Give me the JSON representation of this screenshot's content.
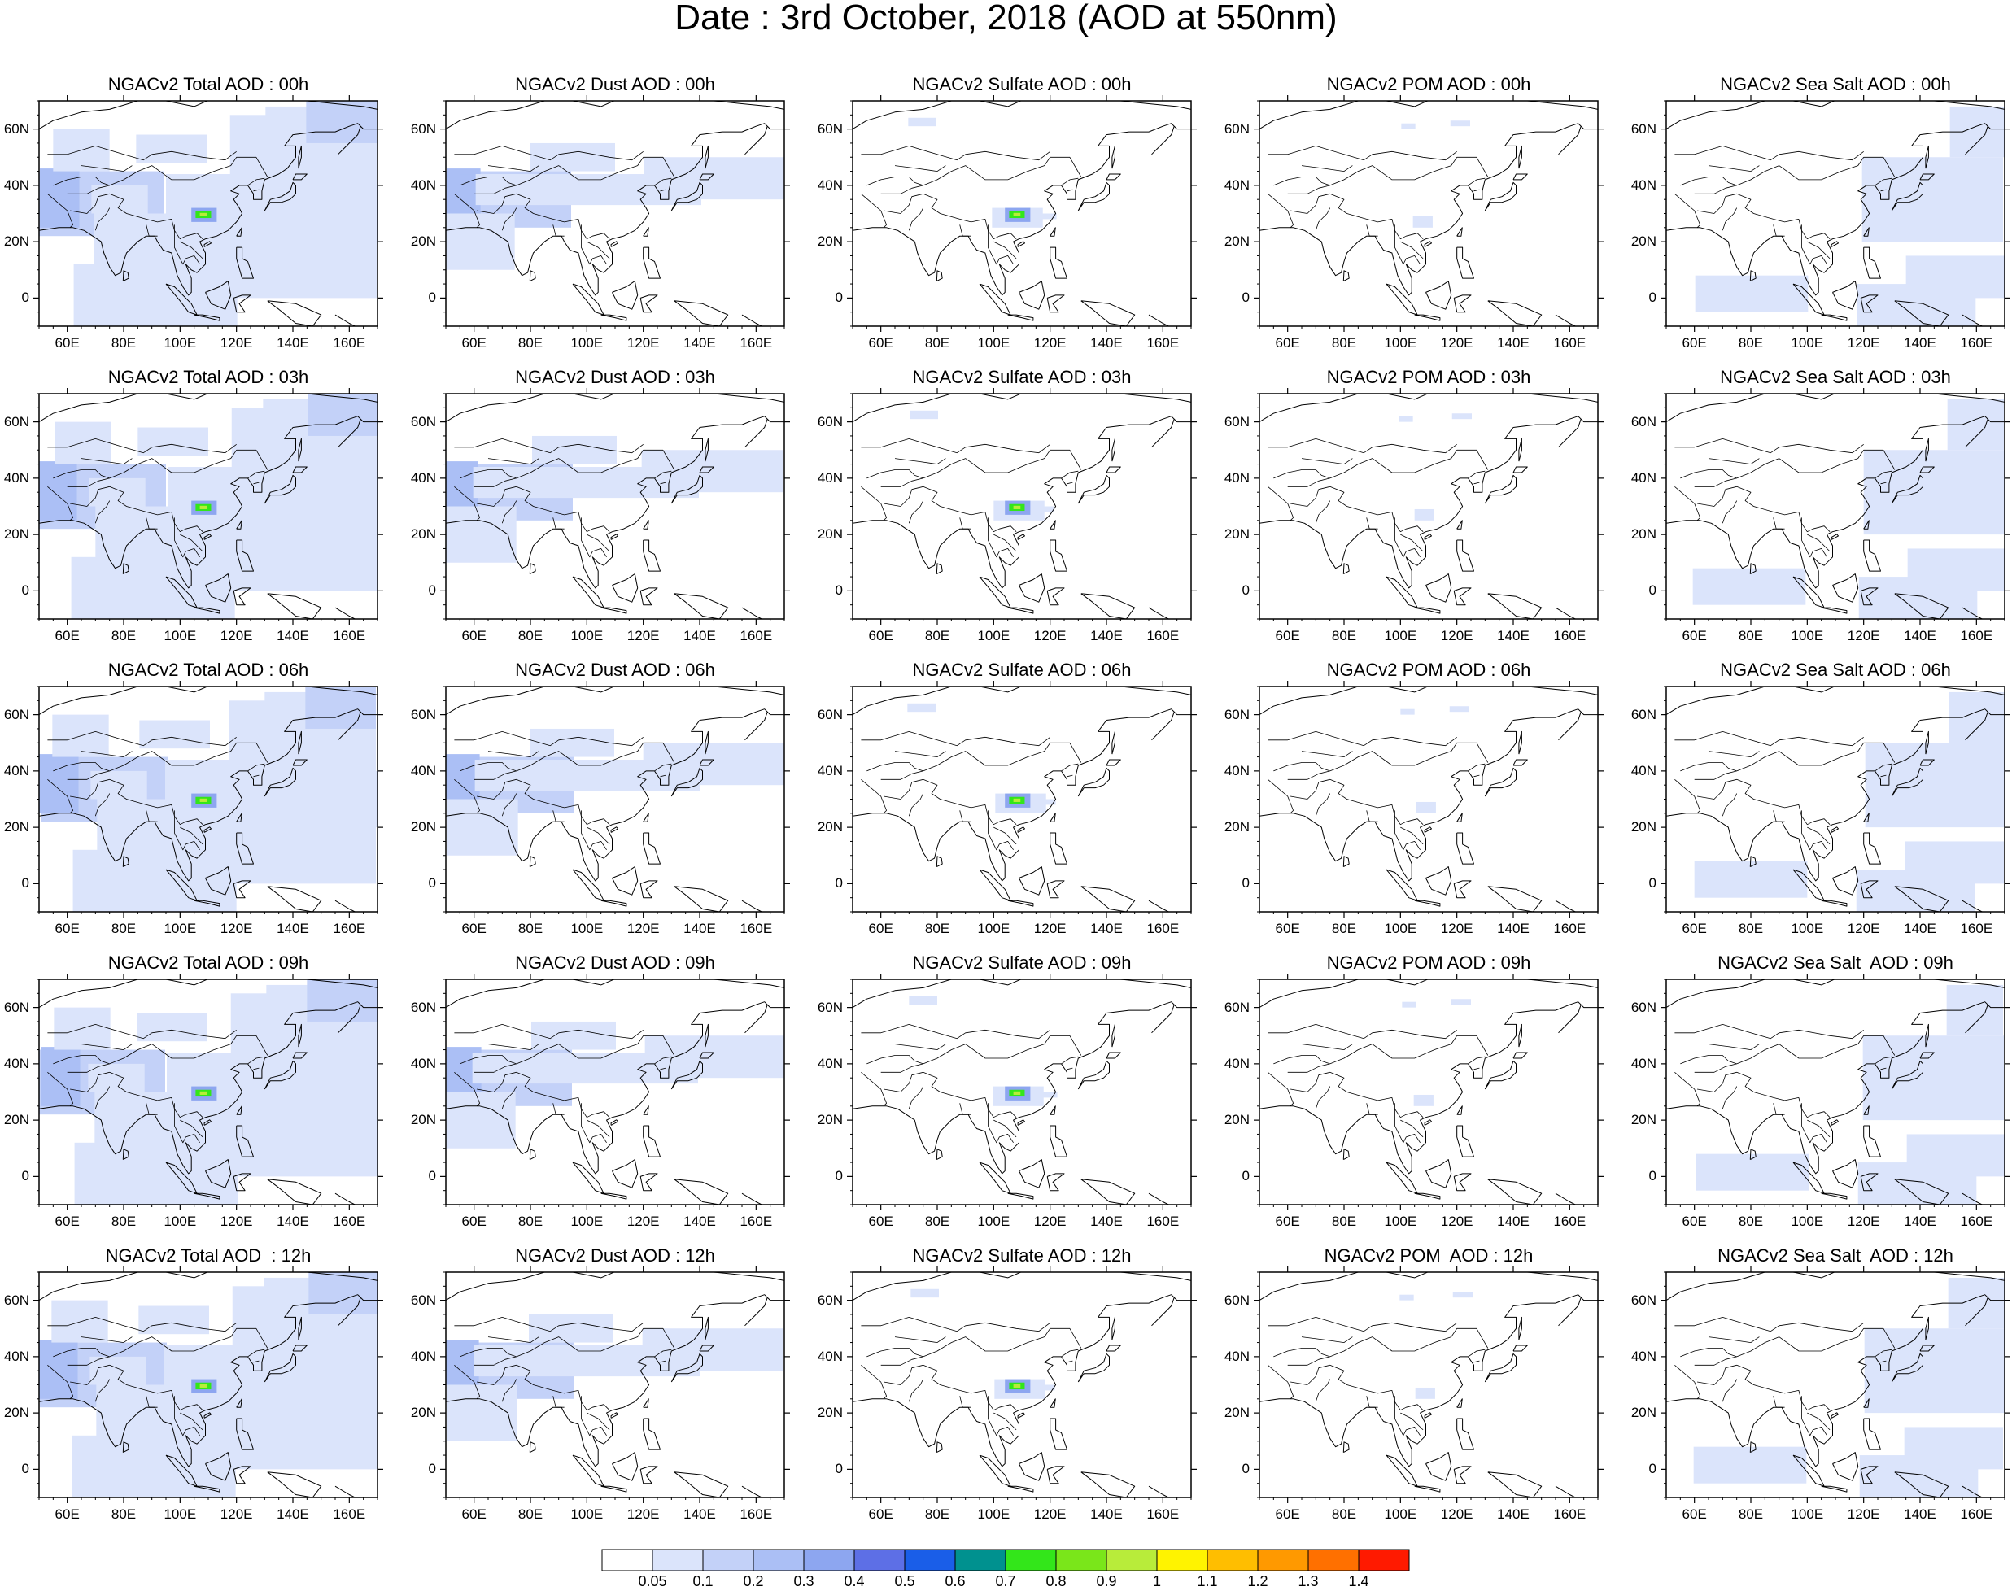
{
  "figure_title": "Date : 3rd October, 2018 (AOD at 550nm)",
  "panel_titles": [
    [
      "NGACv2 Total AOD : 00h",
      "NGACv2 Dust AOD : 00h",
      "NGACv2 Sulfate AOD : 00h",
      "NGACv2 POM AOD : 00h",
      "NGACv2 Sea Salt AOD : 00h"
    ],
    [
      "NGACv2 Total AOD : 03h",
      "NGACv2 Dust AOD : 03h",
      "NGACv2 Sulfate AOD : 03h",
      "NGACv2 POM AOD : 03h",
      "NGACv2 Sea Salt AOD : 03h"
    ],
    [
      "NGACv2 Total AOD : 06h",
      "NGACv2 Dust AOD : 06h",
      "NGACv2 Sulfate AOD : 06h",
      "NGACv2 POM AOD : 06h",
      "NGACv2 Sea Salt AOD : 06h"
    ],
    [
      "NGACv2 Total AOD : 09h",
      "NGACv2 Dust AOD : 09h",
      "NGACv2 Sulfate AOD : 09h",
      "NGACv2 POM AOD : 09h",
      "NGACv2 Sea Salt  AOD : 09h"
    ],
    [
      "NGACv2 Total AOD  : 12h",
      "NGACv2 Dust AOD : 12h",
      "NGACv2 Sulfate AOD : 12h",
      "NGACv2 POM  AOD : 12h",
      "NGACv2 Sea Salt  AOD : 12h"
    ]
  ],
  "map_extent": {
    "lon_range": [
      50,
      170
    ],
    "lat_range": [
      -10,
      70
    ]
  },
  "x_tick_labels": [
    "60E",
    "80E",
    "100E",
    "120E",
    "140E",
    "160E"
  ],
  "y_tick_labels": [
    "60N",
    "40N",
    "20N",
    "0"
  ],
  "colorbar": {
    "labels": [
      "0.05",
      "0.1",
      "0.2",
      "0.3",
      "0.4",
      "0.5",
      "0.6",
      "0.7",
      "0.8",
      "0.9",
      "1",
      "1.1",
      "1.2",
      "1.3",
      "1.4"
    ],
    "colors": [
      "#ffffff",
      "#dbe4fb",
      "#c3d1f8",
      "#abbff5",
      "#8da6f0",
      "#5d6fe6",
      "#1a5ee8",
      "#00918f",
      "#33e61a",
      "#7ae61a",
      "#b8ec3a",
      "#fff300",
      "#ffbe00",
      "#ff9900",
      "#ff7000",
      "#ff1a00"
    ]
  },
  "color_scale": {
    "light": "#dbe4fb",
    "mid": "#c3d1f8",
    "dark": "#abbff5",
    "darker": "#8da6f0",
    "hotspot_green": "#33e61a",
    "hotspot_yellow": "#b8ec3a"
  }
}
